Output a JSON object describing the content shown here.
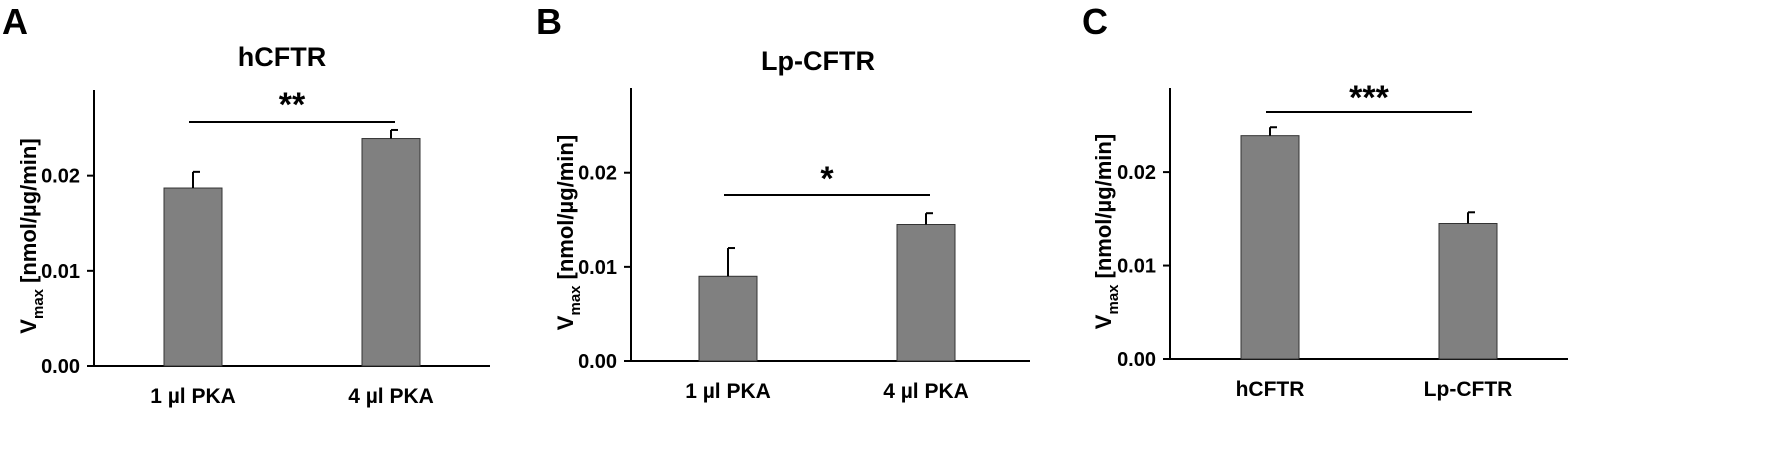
{
  "chart_data": [
    {
      "panel": "A",
      "type": "bar",
      "title": "hCFTR",
      "ylabel_main": "V",
      "ylabel_sub": "max",
      "ylabel_unit": "[nmol/µg/min]",
      "ylim": [
        0,
        0.029
      ],
      "yticks": [
        "0.00",
        "0.01",
        "0.02"
      ],
      "categories": [
        "1 µl PKA",
        "4 µl PKA"
      ],
      "values": [
        0.0187,
        0.0239
      ],
      "errors": [
        0.0017,
        0.0009
      ],
      "significance": "**",
      "colors": {
        "bar": "#808080"
      }
    },
    {
      "panel": "B",
      "type": "bar",
      "title": "Lp-CFTR",
      "ylabel_main": "V",
      "ylabel_sub": "max",
      "ylabel_unit": "[nmol/µg/min]",
      "ylim": [
        0,
        0.029
      ],
      "yticks": [
        "0.00",
        "0.01",
        "0.02"
      ],
      "categories": [
        "1 µl PKA",
        "4 µl PKA"
      ],
      "values": [
        0.009,
        0.0145
      ],
      "errors": [
        0.003,
        0.0012
      ],
      "significance": "*",
      "colors": {
        "bar": "#808080"
      }
    },
    {
      "panel": "C",
      "type": "bar",
      "title": "",
      "ylabel_main": "V",
      "ylabel_sub": "max",
      "ylabel_unit": "[nmol/µg/min]",
      "ylim": [
        0,
        0.029
      ],
      "yticks": [
        "0.00",
        "0.01",
        "0.02"
      ],
      "categories": [
        "hCFTR",
        "Lp-CFTR"
      ],
      "values": [
        0.0239,
        0.0145
      ],
      "errors": [
        0.0009,
        0.0012
      ],
      "significance": "***",
      "colors": {
        "bar": "#808080"
      }
    }
  ]
}
